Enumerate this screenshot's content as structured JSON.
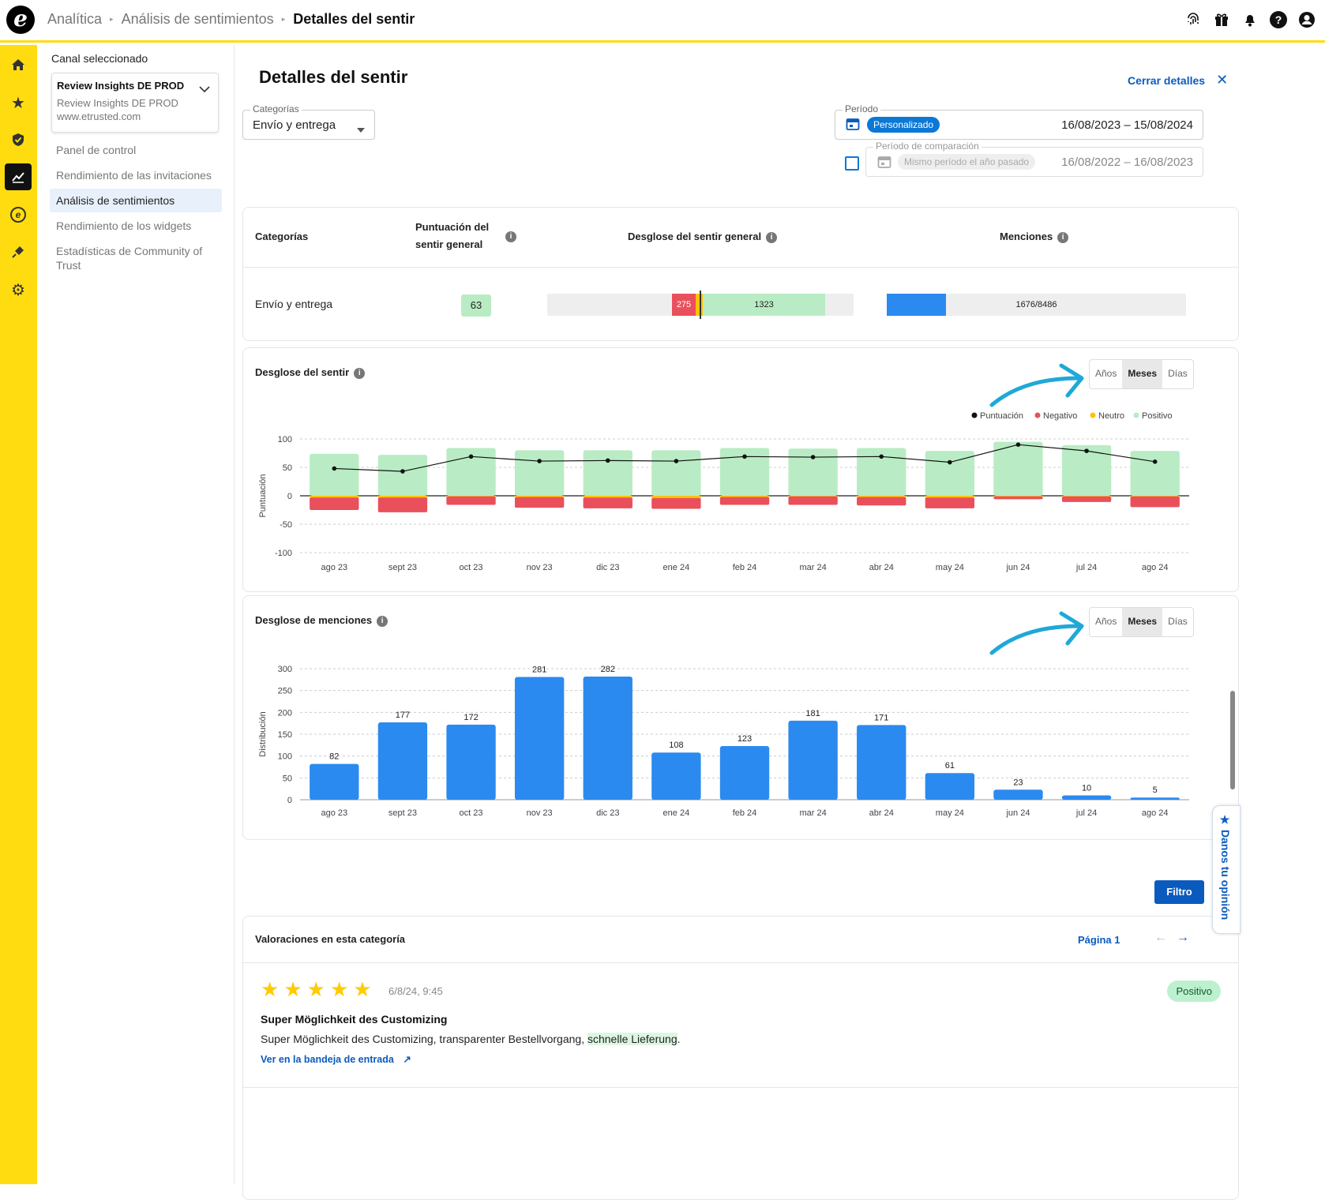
{
  "breadcrumb": {
    "item1": "Analítica",
    "item2": "Análisis de sentimientos",
    "item3": "Detalles del sentir"
  },
  "sidebar": {
    "channel_label": "Canal seleccionado",
    "channel_name": "Review Insights DE PROD",
    "channel_sub1": "Review Insights DE PROD",
    "channel_sub2": "www.etrusted.com",
    "items": [
      {
        "label": "Panel de control"
      },
      {
        "label": "Rendimiento de las invitaciones"
      },
      {
        "label": "Análisis de sentimientos"
      },
      {
        "label": "Rendimiento de los widgets"
      },
      {
        "label": "Estadísticas de Community of Trust"
      }
    ]
  },
  "page": {
    "title": "Detalles del sentir",
    "close_label": "Cerrar detalles"
  },
  "filters": {
    "category_label": "Categorías",
    "category_value": "Envío y entrega",
    "period_label": "Período",
    "period_chip": "Personalizado",
    "period_range": "16/08/2023 – 15/08/2024",
    "compare_label": "Período de comparación",
    "compare_chip": "Mismo período el año pasado",
    "compare_range": "16/08/2022 – 16/08/2023"
  },
  "summary_table": {
    "headers": {
      "category": "Categorías",
      "score_line1": "Puntuación del",
      "score_line2": "sentir general",
      "breakdown": "Desglose del sentir general",
      "mentions": "Menciones"
    },
    "row": {
      "category": "Envío y entrega",
      "score": "63",
      "negative": "275",
      "positive": "1323",
      "mentions": "1676/8486"
    }
  },
  "sentiment_card": {
    "title": "Desglose del sentir",
    "toggles": [
      "Años",
      "Meses",
      "Días"
    ],
    "active": "Meses"
  },
  "mentions_card": {
    "title": "Desglose de menciones",
    "toggles": [
      "Años",
      "Meses",
      "Días"
    ],
    "active": "Meses"
  },
  "filter_button": "Filtro",
  "reviews": {
    "title": "Valoraciones en esta categoría",
    "page_label": "Página 1",
    "review": {
      "date": "6/8/24, 9:45",
      "badge": "Positivo",
      "headline": "Super Möglichkeit des Customizing",
      "body_pre": "Super Möglichkeit des Customizing, transparenter Bestellvorgang, ",
      "body_highlight": "schnelle Lieferung",
      "body_post": ".",
      "link": "Ver en la bandeja de entrada"
    }
  },
  "feedback_tab": "Danos tu opinión",
  "colors": {
    "positive": "#b9ecc4",
    "negative": "#e9505c",
    "neutral": "#ffc107",
    "bar": "#2b8af0",
    "accent": "#0b5bbf",
    "rail": "#ffdc0f"
  },
  "chart_data": [
    {
      "type": "bar",
      "title": "Desglose del sentir",
      "ylabel": "Puntuación",
      "ylim": [
        -100,
        100
      ],
      "yticks": [
        100,
        50,
        0,
        -50,
        -100
      ],
      "categories": [
        "ago 23",
        "sept 23",
        "oct 23",
        "nov 23",
        "dic 23",
        "ene 24",
        "feb 24",
        "mar 24",
        "abr 24",
        "may 24",
        "jun 24",
        "jul 24",
        "ago 24"
      ],
      "legend": [
        "Puntuación",
        "Negativo",
        "Neutro",
        "Positivo"
      ],
      "series": [
        {
          "name": "Positivo",
          "values": [
            74,
            72,
            84,
            80,
            80,
            80,
            84,
            83,
            84,
            79,
            95,
            89,
            79
          ]
        },
        {
          "name": "Neutro",
          "values": [
            -3,
            -3,
            -1,
            -2,
            -3,
            -4,
            -2,
            -1,
            -2,
            -3,
            -1,
            -1,
            -1
          ]
        },
        {
          "name": "Negativo",
          "values": [
            -22,
            -26,
            -15,
            -19,
            -19,
            -19,
            -14,
            -15,
            -15,
            -19,
            -5,
            -10,
            -19
          ]
        },
        {
          "name": "Puntuación",
          "values": [
            48,
            43,
            69,
            61,
            62,
            61,
            69,
            68,
            69,
            59,
            90,
            79,
            60
          ]
        }
      ]
    },
    {
      "type": "bar",
      "title": "Desglose de menciones",
      "ylabel": "Distribución",
      "ylim": [
        0,
        300
      ],
      "yticks": [
        300,
        250,
        200,
        150,
        100,
        50,
        0
      ],
      "categories": [
        "ago 23",
        "sept 23",
        "oct 23",
        "nov 23",
        "dic 23",
        "ene 24",
        "feb 24",
        "mar 24",
        "abr 24",
        "may 24",
        "jun 24",
        "jul 24",
        "ago 24"
      ],
      "values": [
        82,
        177,
        172,
        281,
        282,
        108,
        123,
        181,
        171,
        61,
        23,
        10,
        5
      ]
    }
  ]
}
